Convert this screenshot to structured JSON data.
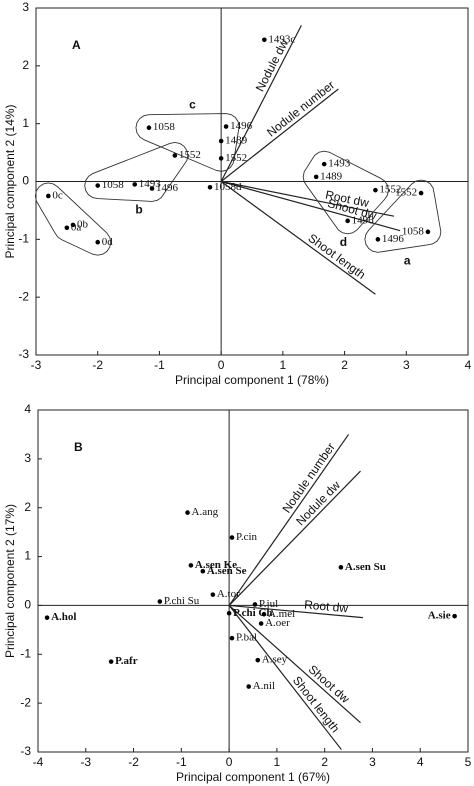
{
  "chart_data": [
    {
      "type": "scatter",
      "title": "A",
      "xlabel": "Principal component 1 (78%)",
      "ylabel": "Principal component 2 (14%)",
      "xlim": [
        -3,
        4
      ],
      "ylim": [
        -3,
        3
      ],
      "xticks": [
        -3,
        -2,
        -1,
        0,
        1,
        2,
        3,
        4
      ],
      "yticks": [
        -3,
        -2,
        -1,
        0,
        1,
        2,
        3
      ],
      "color": "#000000",
      "series": [
        {
          "name": null,
          "outline": true,
          "x": [
            -2.8,
            -2.4,
            -2.5,
            -2.0
          ],
          "y": [
            -0.25,
            -0.75,
            -0.8,
            -1.05
          ],
          "labels": [
            "0c",
            "0b",
            "0a",
            "0d"
          ]
        },
        {
          "name": "b",
          "outline": true,
          "x": [
            -2.0,
            -1.4,
            -1.12,
            -0.75
          ],
          "y": [
            -0.07,
            -0.05,
            -0.12,
            0.45
          ],
          "labels": [
            "1058",
            "1493",
            "1496",
            "1552"
          ]
        },
        {
          "name": "c",
          "outline": true,
          "x": [
            -1.17,
            0.08,
            0.0,
            0.0
          ],
          "y": [
            0.93,
            0.95,
            0.7,
            0.4
          ],
          "labels": [
            "1058",
            "1496",
            "1489",
            "1552"
          ]
        },
        {
          "name": "d",
          "outline": true,
          "x": [
            1.67,
            1.54,
            2.5,
            2.05
          ],
          "y": [
            0.3,
            0.08,
            -0.15,
            -0.68
          ],
          "labels": [
            "1493",
            "1489",
            "1552",
            "1496"
          ]
        },
        {
          "name": "a",
          "outline": true,
          "x": [
            3.24,
            3.35,
            2.54
          ],
          "y": [
            -0.2,
            -0.87,
            -1.0
          ],
          "labels": [
            "1552",
            "1058",
            "1496"
          ]
        },
        {
          "name": null,
          "outline": false,
          "x": [
            0.7,
            -0.18
          ],
          "y": [
            2.45,
            -0.1
          ],
          "labels": [
            "1493c",
            "1058d"
          ]
        }
      ],
      "vectors": [
        {
          "name": "Nodule dw",
          "x": 1.3,
          "y": 2.7
        },
        {
          "name": "Nodule number",
          "x": 1.9,
          "y": 1.6
        },
        {
          "name": "Root dw",
          "x": 2.8,
          "y": -0.6
        },
        {
          "name": "Shoot dw",
          "x": 2.9,
          "y": -0.85
        },
        {
          "name": "Shoot length",
          "x": 2.5,
          "y": -1.95
        }
      ]
    },
    {
      "type": "scatter",
      "title": "B",
      "xlabel": "Principal component 1 (67%)",
      "ylabel": "Principal component 2 (17%)",
      "xlim": [
        -4,
        5
      ],
      "ylim": [
        -3,
        4
      ],
      "xticks": [
        -4,
        -3,
        -2,
        -1,
        0,
        1,
        2,
        3,
        4,
        5
      ],
      "yticks": [
        -3,
        -2,
        -1,
        0,
        1,
        2,
        3,
        4
      ],
      "color": "#000000",
      "series": [
        {
          "name": null,
          "outline": false,
          "x": [
            -0.87,
            0.06,
            -0.8,
            -0.55,
            2.34,
            -0.34,
            0.54,
            -1.45,
            -3.81,
            0.0,
            0.73,
            0.67,
            4.72,
            0.06,
            -2.47,
            0.6,
            0.41
          ],
          "y": [
            1.9,
            1.39,
            0.82,
            0.7,
            0.78,
            0.22,
            0.02,
            0.08,
            -0.25,
            -0.16,
            -0.18,
            -0.37,
            -0.22,
            -0.67,
            -1.15,
            -1.12,
            -1.66
          ],
          "labels": [
            "A.ang",
            "P.cin",
            "A.sen Ke",
            "A.sen Se",
            "A.sen Su",
            "A.tor",
            "P.jul",
            "P.chi Su",
            "A.hol",
            "P.chi Ch",
            "A.mel",
            "A.oer",
            "A.sie",
            "P.bal",
            "P.afr",
            "A.sey",
            "A.nil"
          ],
          "bold": [
            false,
            false,
            true,
            true,
            true,
            false,
            false,
            false,
            true,
            true,
            false,
            false,
            true,
            false,
            true,
            false,
            false
          ]
        }
      ],
      "vectors": [
        {
          "name": "Nodule number",
          "x": 2.5,
          "y": 3.5
        },
        {
          "name": "Nodule dw",
          "x": 2.75,
          "y": 2.75
        },
        {
          "name": "Root dw",
          "x": 2.8,
          "y": -0.25
        },
        {
          "name": "Shoot dw",
          "x": 2.75,
          "y": -2.4
        },
        {
          "name": "Shoot length",
          "x": 2.35,
          "y": -2.95
        }
      ]
    }
  ]
}
